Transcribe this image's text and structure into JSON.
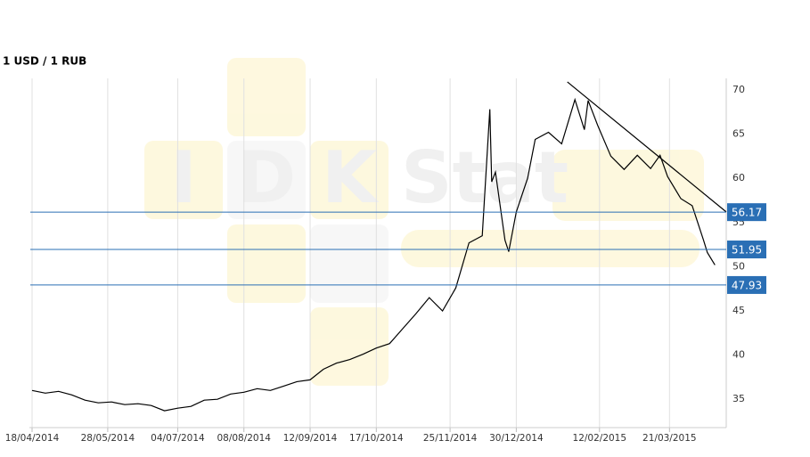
{
  "chart_data": {
    "type": "line",
    "title": "1 USD / 1 RUB",
    "watermark": [
      "I",
      "D",
      "K",
      "Stat"
    ],
    "x": [
      "18/04/2014",
      "25/04/2014",
      "02/05/2014",
      "09/05/2014",
      "16/05/2014",
      "23/05/2014",
      "30/05/2014",
      "06/06/2014",
      "13/06/2014",
      "20/06/2014",
      "27/06/2014",
      "04/07/2014",
      "11/07/2014",
      "18/07/2014",
      "25/07/2014",
      "01/08/2014",
      "08/08/2014",
      "15/08/2014",
      "22/08/2014",
      "29/08/2014",
      "05/09/2014",
      "12/09/2014",
      "19/09/2014",
      "26/09/2014",
      "03/10/2014",
      "10/10/2014",
      "17/10/2014",
      "24/10/2014",
      "31/10/2014",
      "07/11/2014",
      "14/11/2014",
      "21/11/2014",
      "28/11/2014",
      "05/12/2014",
      "12/12/2014",
      "16/12/2014",
      "17/12/2014",
      "19/12/2014",
      "24/12/2014",
      "26/12/2014",
      "30/12/2014",
      "05/01/2015",
      "09/01/2015",
      "16/01/2015",
      "23/01/2015",
      "30/01/2015",
      "04/02/2015",
      "06/02/2015",
      "11/02/2015",
      "18/02/2015",
      "25/02/2015",
      "04/03/2015",
      "11/03/2015",
      "16/03/2015",
      "20/03/2015",
      "27/03/2015",
      "02/04/2015",
      "08/04/2015",
      "10/04/2015",
      "14/04/2015"
    ],
    "series": [
      {
        "name": "USD/RUB",
        "color": "#000000",
        "values": [
          36.0,
          35.7,
          35.9,
          35.5,
          34.9,
          34.6,
          34.7,
          34.4,
          34.5,
          34.3,
          33.7,
          34.0,
          34.2,
          34.9,
          35.0,
          35.6,
          35.8,
          36.2,
          36.0,
          36.5,
          37.0,
          37.2,
          38.4,
          39.1,
          39.5,
          40.1,
          40.8,
          41.3,
          43.0,
          44.7,
          46.5,
          45.0,
          47.6,
          52.7,
          53.5,
          67.8,
          59.6,
          60.7,
          53.0,
          51.7,
          56.2,
          60.0,
          64.4,
          65.2,
          63.9,
          68.9,
          65.5,
          68.8,
          66.0,
          62.5,
          61.0,
          62.6,
          61.1,
          62.6,
          60.2,
          57.7,
          56.9,
          53.0,
          51.6,
          50.2
        ]
      }
    ],
    "levels": [
      {
        "value": 56.17,
        "color": "#2a6fb5"
      },
      {
        "value": 51.95,
        "color": "#2a6fb5"
      },
      {
        "value": 47.93,
        "color": "#2a6fb5"
      }
    ],
    "trendline": {
      "x": [
        "26/01/2015",
        "20/04/2015"
      ],
      "y": [
        70.9,
        56.2
      ],
      "color": "#000000"
    },
    "xlim": [
      "18/04/2014",
      "20/04/2015"
    ],
    "xticks": [
      "18/04/2014",
      "28/05/2014",
      "04/07/2014",
      "08/08/2014",
      "12/09/2014",
      "17/10/2014",
      "25/11/2014",
      "30/12/2014",
      "12/02/2015",
      "21/03/2015"
    ],
    "ylim": [
      31.8,
      71.3
    ],
    "yticks": [
      35,
      40,
      45,
      50,
      55,
      60,
      65,
      70
    ],
    "grid": true
  }
}
